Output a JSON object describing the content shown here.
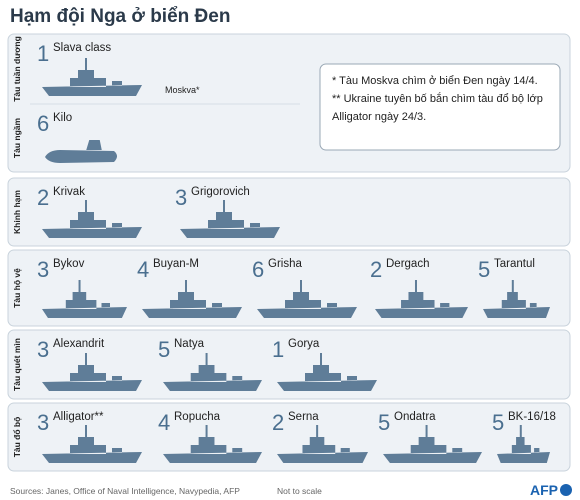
{
  "header": {
    "title": "Hạm đội Nga ở biển Đen"
  },
  "sections": [
    {
      "label": "Tàu tuần dương",
      "items": [
        {
          "count": 1,
          "name": "Slava class"
        }
      ]
    },
    {
      "label": "Tàu ngầm",
      "items": [
        {
          "count": 6,
          "name": "Kilo"
        }
      ]
    },
    {
      "label": "Khinh hạm",
      "items": [
        {
          "count": 2,
          "name": "Krivak"
        },
        {
          "count": 3,
          "name": "Grigorovich"
        }
      ]
    },
    {
      "label": "Tàu hộ vệ",
      "items": [
        {
          "count": 3,
          "name": "Bykov"
        },
        {
          "count": 4,
          "name": "Buyan-M"
        },
        {
          "count": 6,
          "name": "Grisha"
        },
        {
          "count": 2,
          "name": "Dergach"
        },
        {
          "count": 5,
          "name": "Tarantul"
        }
      ]
    },
    {
      "label": "Tàu quét mìn",
      "items": [
        {
          "count": 3,
          "name": "Alexandrit"
        },
        {
          "count": 5,
          "name": "Natya"
        },
        {
          "count": 1,
          "name": "Gorya"
        }
      ]
    },
    {
      "label": "Tàu đổ bộ",
      "items": [
        {
          "count": 3,
          "name": "Alligator**"
        },
        {
          "count": 4,
          "name": "Ropucha"
        },
        {
          "count": 2,
          "name": "Serna"
        },
        {
          "count": 5,
          "name": "Ondatra"
        },
        {
          "count": 5,
          "name": "BK-16/18"
        }
      ]
    }
  ],
  "ship_label": "Moskva*",
  "note": {
    "lines": [
      "* Tàu Moskva chìm ở biển Đen ngày 14/4.",
      "** Ukraine tuyên bố bắn chìm tàu đổ bộ lớp",
      "Alligator ngày 24/3."
    ]
  },
  "footer": {
    "sources": "Sources: Janes, Office of Naval Intelligence, Navypedia, AFP",
    "scale": "Not to scale",
    "logo": "AFP"
  }
}
